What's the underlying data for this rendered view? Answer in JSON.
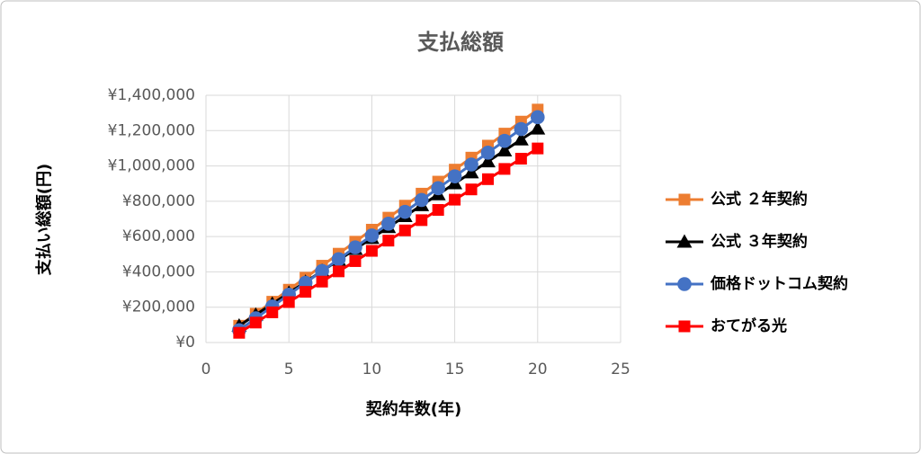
{
  "chart_data": {
    "type": "line",
    "title": "支払総額",
    "x_label": "契約年数(年)",
    "y_label": "支払い総額(円)",
    "x": [
      2,
      3,
      4,
      5,
      6,
      7,
      8,
      9,
      10,
      11,
      12,
      13,
      14,
      15,
      16,
      17,
      18,
      19,
      20
    ],
    "series": [
      {
        "name": "公式 ２年契約",
        "color": "#ED7D31",
        "marker": "square",
        "values": [
          95000,
          163000,
          231000,
          299000,
          367000,
          435000,
          503000,
          571000,
          639000,
          707000,
          775000,
          843000,
          911000,
          979000,
          1047000,
          1115000,
          1183000,
          1251000,
          1319000
        ]
      },
      {
        "name": "公式 ３年契約",
        "color": "#000000",
        "marker": "triangle",
        "values": [
          95000,
          157000,
          219000,
          281000,
          343000,
          405000,
          467000,
          529000,
          591000,
          653000,
          715000,
          777000,
          839000,
          901000,
          963000,
          1025000,
          1087000,
          1149000,
          1211000
        ]
      },
      {
        "name": "価格ドットコム契約",
        "color": "#4472C4",
        "marker": "circle",
        "values": [
          70000,
          137000,
          204000,
          271000,
          338000,
          405000,
          472000,
          539000,
          606000,
          673000,
          740000,
          807000,
          874000,
          941000,
          1008000,
          1075000,
          1142000,
          1209000,
          1276000
        ]
      },
      {
        "name": "おてがる光",
        "color": "#FF0000",
        "marker": "square",
        "values": [
          55000,
          113000,
          171000,
          229000,
          287000,
          345000,
          403000,
          461000,
          519000,
          577000,
          635000,
          693000,
          751000,
          809000,
          867000,
          925000,
          983000,
          1041000,
          1099000
        ]
      }
    ],
    "xlim": [
      0,
      25
    ],
    "xticks": [
      0,
      5,
      10,
      15,
      20,
      25
    ],
    "ylim": [
      0,
      1400000
    ],
    "yticks": [
      {
        "value": 0,
        "label": "¥0"
      },
      {
        "value": 200000,
        "label": "¥200,000"
      },
      {
        "value": 400000,
        "label": "¥400,000"
      },
      {
        "value": 600000,
        "label": "¥600,000"
      },
      {
        "value": 800000,
        "label": "¥800,000"
      },
      {
        "value": 1000000,
        "label": "¥1,000,000"
      },
      {
        "value": 1200000,
        "label": "¥1,200,000"
      },
      {
        "value": 1400000,
        "label": "¥1,400,000"
      }
    ],
    "grid": true
  }
}
